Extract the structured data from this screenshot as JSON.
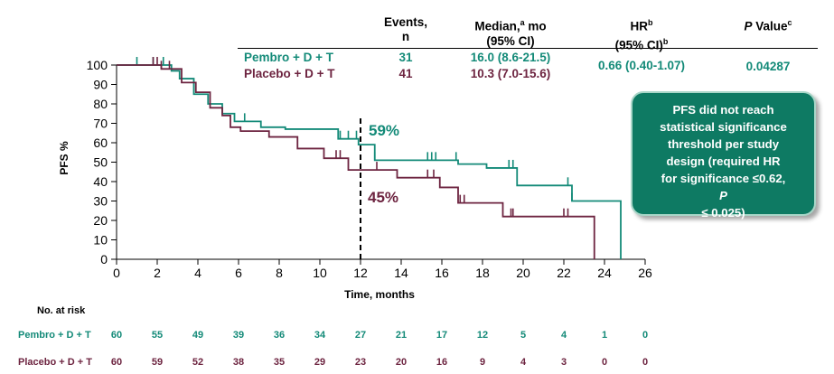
{
  "table": {
    "headers": {
      "events": [
        "Events,",
        "n"
      ],
      "median": [
        "Median,",
        "a",
        " mo",
        "(95% CI)"
      ],
      "hr": [
        "HR",
        "b",
        "(95% CI)",
        "b"
      ],
      "pvalue": [
        "P",
        " Value",
        "c"
      ]
    },
    "rows": [
      {
        "name": "Pembro + D + T",
        "events": "31",
        "median": "16.0 (8.6-21.5)"
      },
      {
        "name": "Placebo + D + T",
        "events": "41",
        "median": "10.3 (7.0-15.6)"
      }
    ],
    "hr_value": "0.66 (0.40-1.07)",
    "p_value": "0.04287"
  },
  "callout": {
    "lines": [
      "PFS did not reach",
      "statistical significance",
      "threshold per study",
      "design (required HR",
      "for significance ≤0.62,"
    ],
    "last_line_p": "P",
    "last_line_rest": " ≤ 0.025)"
  },
  "annotations": {
    "pembro_12mo": "59%",
    "placebo_12mo": "45%"
  },
  "colors": {
    "pembro": "#138a78",
    "placebo": "#6d2440",
    "callout_bg": "#0e7a63"
  },
  "risk_table": {
    "title": "No. at risk",
    "rows": [
      {
        "name": "Pembro + D + T",
        "values": [
          "60",
          "55",
          "49",
          "39",
          "36",
          "34",
          "27",
          "21",
          "17",
          "12",
          "5",
          "4",
          "1",
          "0"
        ]
      },
      {
        "name": "Placebo + D + T",
        "values": [
          "60",
          "59",
          "52",
          "38",
          "35",
          "29",
          "23",
          "20",
          "16",
          "9",
          "4",
          "3",
          "0",
          "0"
        ]
      }
    ]
  },
  "chart_data": {
    "type": "line",
    "subtype": "kaplan-meier-step",
    "xlabel": "Time, months",
    "ylabel": "PFS %",
    "xlim": [
      0,
      26
    ],
    "ylim": [
      0,
      100
    ],
    "xticks": [
      0,
      2,
      4,
      6,
      8,
      10,
      12,
      14,
      16,
      18,
      20,
      22,
      24,
      26
    ],
    "yticks": [
      0,
      10,
      20,
      30,
      40,
      50,
      60,
      70,
      80,
      90,
      100
    ],
    "grid": false,
    "reference_line_x": 12,
    "series": [
      {
        "name": "Pembro + D + T",
        "points": [
          [
            0,
            100
          ],
          [
            2.7,
            100
          ],
          [
            2.7,
            97
          ],
          [
            3.1,
            97
          ],
          [
            3.1,
            93
          ],
          [
            3.8,
            93
          ],
          [
            3.8,
            85
          ],
          [
            4.5,
            85
          ],
          [
            4.5,
            80
          ],
          [
            5.2,
            80
          ],
          [
            5.2,
            75
          ],
          [
            5.8,
            75
          ],
          [
            5.8,
            71
          ],
          [
            7.1,
            71
          ],
          [
            7.1,
            68
          ],
          [
            8.3,
            68
          ],
          [
            8.3,
            67
          ],
          [
            10.9,
            67
          ],
          [
            10.9,
            62
          ],
          [
            11.9,
            62
          ],
          [
            11.9,
            59
          ],
          [
            12.7,
            59
          ],
          [
            12.7,
            51
          ],
          [
            16.8,
            51
          ],
          [
            16.8,
            49
          ],
          [
            18.2,
            49
          ],
          [
            18.2,
            47
          ],
          [
            19.7,
            47
          ],
          [
            19.7,
            38
          ],
          [
            22.4,
            38
          ],
          [
            22.4,
            30
          ],
          [
            24.8,
            30
          ],
          [
            24.8,
            0
          ]
        ],
        "censor_times": [
          1.0,
          1.8,
          2.3,
          6.3,
          11.0,
          11.4,
          11.8,
          12.7,
          15.3,
          15.5,
          15.7,
          16.7,
          19.3,
          19.5,
          22.2,
          22.4
        ]
      },
      {
        "name": "Placebo + D + T",
        "points": [
          [
            0,
            100
          ],
          [
            2.2,
            100
          ],
          [
            2.2,
            98
          ],
          [
            3.2,
            98
          ],
          [
            3.2,
            91
          ],
          [
            3.9,
            91
          ],
          [
            3.9,
            86
          ],
          [
            4.6,
            86
          ],
          [
            4.6,
            78
          ],
          [
            5.2,
            78
          ],
          [
            5.2,
            74
          ],
          [
            5.6,
            74
          ],
          [
            5.6,
            68
          ],
          [
            6.1,
            68
          ],
          [
            6.1,
            66
          ],
          [
            7.5,
            66
          ],
          [
            7.5,
            63
          ],
          [
            8.9,
            63
          ],
          [
            8.9,
            57
          ],
          [
            10.2,
            57
          ],
          [
            10.2,
            52
          ],
          [
            11.4,
            52
          ],
          [
            11.4,
            46
          ],
          [
            13.8,
            46
          ],
          [
            13.8,
            42
          ],
          [
            15.9,
            42
          ],
          [
            15.9,
            37
          ],
          [
            16.8,
            37
          ],
          [
            16.8,
            29
          ],
          [
            19.0,
            29
          ],
          [
            19.0,
            22
          ],
          [
            23.5,
            22
          ],
          [
            23.5,
            0
          ]
        ],
        "censor_times": [
          1.8,
          2.0,
          2.2,
          2.6,
          10.8,
          11.0,
          12.8,
          15.3,
          15.6,
          16.9,
          17.1,
          19.4,
          19.5,
          22.0,
          22.2
        ]
      }
    ]
  }
}
